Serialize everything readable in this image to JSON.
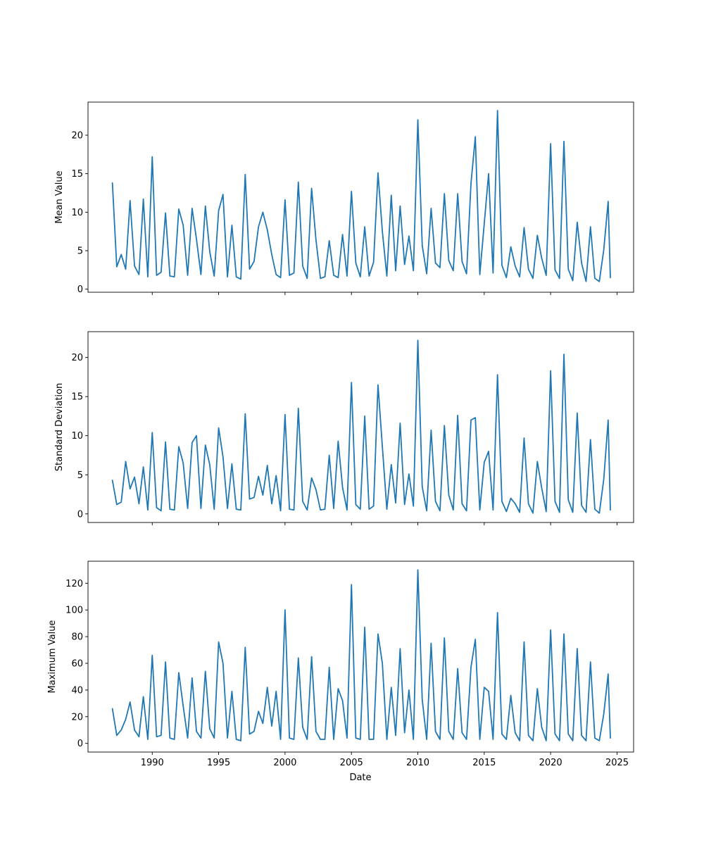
{
  "chart_data": {
    "type": "line",
    "layout": "3 vertically stacked panels sharing the x-axis",
    "xlabel": "Date",
    "x_tick_labels": [
      "1990",
      "1995",
      "2000",
      "2005",
      "2010",
      "2015",
      "2020",
      "2025"
    ],
    "x_ticks": [
      "1990-01-01",
      "1995-01-01",
      "2000-01-01",
      "2005-01-01",
      "2010-01-01",
      "2015-01-01",
      "2020-01-01",
      "2025-01-01"
    ],
    "xlim": [
      "1985-03-01",
      "2026-04-01"
    ],
    "x": [
      "1987-01-01",
      "1987-05-01",
      "1987-09-01",
      "1988-01-01",
      "1988-05-01",
      "1988-09-01",
      "1989-01-01",
      "1989-05-01",
      "1989-09-01",
      "1990-01-01",
      "1990-05-01",
      "1990-09-01",
      "1991-01-01",
      "1991-05-01",
      "1991-09-01",
      "1992-01-01",
      "1992-05-01",
      "1992-09-01",
      "1993-01-01",
      "1993-05-01",
      "1993-09-01",
      "1994-01-01",
      "1994-05-01",
      "1994-09-01",
      "1995-01-01",
      "1995-05-01",
      "1995-09-01",
      "1996-01-01",
      "1996-05-01",
      "1996-09-01",
      "1997-01-01",
      "1997-05-01",
      "1997-09-01",
      "1998-01-01",
      "1998-05-01",
      "1998-09-01",
      "1999-01-01",
      "1999-05-01",
      "1999-09-01",
      "2000-01-01",
      "2000-05-01",
      "2000-09-01",
      "2001-01-01",
      "2001-05-01",
      "2001-09-01",
      "2002-01-01",
      "2002-05-01",
      "2002-09-01",
      "2003-01-01",
      "2003-05-01",
      "2003-09-01",
      "2004-01-01",
      "2004-05-01",
      "2004-09-01",
      "2005-01-01",
      "2005-05-01",
      "2005-09-01",
      "2006-01-01",
      "2006-05-01",
      "2006-09-01",
      "2007-01-01",
      "2007-05-01",
      "2007-09-01",
      "2008-01-01",
      "2008-05-01",
      "2008-09-01",
      "2009-01-01",
      "2009-05-01",
      "2009-09-01",
      "2010-01-01",
      "2010-05-01",
      "2010-09-01",
      "2011-01-01",
      "2011-05-01",
      "2011-09-01",
      "2012-01-01",
      "2012-05-01",
      "2012-09-01",
      "2013-01-01",
      "2013-05-01",
      "2013-09-01",
      "2014-01-01",
      "2014-05-01",
      "2014-09-01",
      "2015-01-01",
      "2015-05-01",
      "2015-09-01",
      "2016-01-01",
      "2016-05-01",
      "2016-09-01",
      "2017-01-01",
      "2017-05-01",
      "2017-09-01",
      "2018-01-01",
      "2018-05-01",
      "2018-09-01",
      "2019-01-01",
      "2019-05-01",
      "2019-09-01",
      "2020-01-01",
      "2020-05-01",
      "2020-09-01",
      "2021-01-01",
      "2021-05-01",
      "2021-09-01",
      "2022-01-01",
      "2022-05-01",
      "2022-09-01",
      "2023-01-01",
      "2023-05-01",
      "2023-09-01",
      "2024-01-01",
      "2024-05-01",
      "2024-07-01"
    ],
    "panels": [
      {
        "ylabel": "Mean Value",
        "ylim": [
          -0.4,
          24.3
        ],
        "yticks": [
          0,
          5,
          10,
          15,
          20
        ],
        "color": "#1f77b4",
        "values": [
          13.8,
          2.9,
          4.5,
          2.6,
          11.5,
          3.0,
          1.9,
          11.7,
          1.6,
          17.2,
          1.8,
          2.2,
          9.9,
          1.7,
          1.6,
          10.4,
          8.3,
          1.8,
          10.5,
          6.5,
          1.9,
          10.8,
          4.9,
          1.7,
          10.2,
          12.3,
          1.6,
          8.3,
          1.6,
          1.3,
          14.9,
          2.6,
          3.6,
          8.1,
          10.0,
          7.7,
          4.5,
          1.9,
          1.5,
          11.6,
          1.8,
          2.1,
          13.9,
          3.0,
          1.4,
          13.1,
          6.4,
          1.4,
          1.6,
          6.3,
          1.8,
          1.5,
          7.1,
          1.7,
          12.7,
          3.4,
          1.6,
          8.1,
          1.7,
          3.5,
          15.1,
          7.5,
          1.7,
          12.2,
          2.4,
          10.8,
          3.2,
          6.9,
          2.4,
          22.0,
          5.7,
          2.0,
          10.5,
          3.4,
          2.8,
          12.4,
          3.7,
          2.4,
          12.4,
          3.6,
          2.0,
          13.7,
          19.8,
          1.9,
          8.5,
          15.0,
          2.1,
          23.2,
          3.1,
          1.5,
          5.5,
          3.0,
          1.6,
          8.0,
          2.6,
          1.4,
          7.0,
          4.0,
          1.8,
          18.9,
          2.5,
          1.4,
          19.2,
          2.6,
          1.1,
          8.7,
          3.4,
          1.0,
          8.1,
          1.4,
          1.0,
          5.1,
          11.4,
          1.5
        ]
      },
      {
        "ylabel": "Standard Deviation",
        "ylim": [
          -1.1,
          23.3
        ],
        "yticks": [
          0,
          5,
          10,
          15,
          20
        ],
        "color": "#1f77b4",
        "values": [
          4.3,
          1.2,
          1.5,
          6.7,
          3.2,
          4.7,
          1.3,
          6.0,
          0.5,
          10.4,
          0.8,
          0.4,
          9.2,
          0.6,
          0.5,
          8.6,
          6.5,
          0.7,
          9.1,
          10.0,
          0.7,
          8.8,
          6.3,
          0.6,
          11.0,
          7.3,
          0.7,
          6.4,
          0.6,
          0.5,
          12.8,
          1.9,
          2.1,
          4.8,
          2.4,
          6.2,
          1.3,
          4.9,
          0.4,
          12.7,
          0.6,
          0.5,
          13.5,
          1.6,
          0.5,
          4.6,
          3.1,
          0.5,
          0.6,
          7.5,
          0.7,
          9.3,
          3.4,
          0.5,
          16.8,
          1.2,
          0.6,
          12.5,
          0.6,
          1.0,
          16.5,
          8.6,
          0.6,
          6.3,
          1.4,
          11.6,
          1.2,
          5.1,
          1.0,
          22.2,
          3.5,
          0.4,
          10.7,
          1.6,
          0.4,
          11.3,
          2.4,
          0.5,
          12.6,
          1.3,
          0.4,
          12.0,
          12.3,
          0.5,
          6.6,
          8.0,
          0.5,
          17.8,
          1.6,
          0.3,
          2.0,
          1.3,
          0.2,
          9.7,
          1.3,
          0.1,
          6.7,
          3.3,
          0.3,
          18.3,
          1.6,
          0.2,
          20.4,
          1.8,
          0.2,
          12.9,
          1.1,
          0.2,
          9.5,
          0.6,
          0.1,
          4.4,
          12.0,
          0.5
        ]
      },
      {
        "ylabel": "Maximum Value",
        "ylim": [
          -6.5,
          136.5
        ],
        "yticks": [
          0,
          20,
          40,
          60,
          80,
          100,
          120
        ],
        "color": "#1f77b4",
        "values": [
          26,
          6,
          10,
          18,
          31,
          10,
          5,
          35,
          3,
          66,
          5,
          6,
          61,
          4,
          3,
          53,
          28,
          4,
          49,
          9,
          4,
          54,
          11,
          4,
          76,
          60,
          4,
          39,
          3,
          2,
          72,
          7,
          9,
          24,
          15,
          42,
          13,
          39,
          3,
          100,
          4,
          3,
          64,
          12,
          3,
          65,
          9,
          3,
          3,
          57,
          3,
          41,
          32,
          4,
          119,
          4,
          3,
          87,
          3,
          3,
          82,
          60,
          3,
          42,
          6,
          71,
          8,
          40,
          3,
          130,
          33,
          3,
          75,
          9,
          3,
          79,
          9,
          3,
          56,
          8,
          3,
          57,
          78,
          3,
          42,
          39,
          3,
          98,
          7,
          3,
          36,
          8,
          2,
          76,
          6,
          2,
          41,
          12,
          2,
          85,
          7,
          2,
          82,
          7,
          2,
          71,
          6,
          2,
          61,
          4,
          2,
          22,
          52,
          4
        ]
      }
    ]
  }
}
